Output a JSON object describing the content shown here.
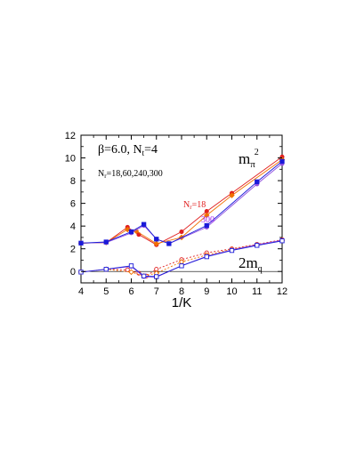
{
  "chart_data": {
    "type": "line",
    "title": "",
    "xlabel": "1/K",
    "ylabel": "",
    "xlim": [
      4,
      12
    ],
    "ylim": [
      -1,
      12
    ],
    "x_ticks": [
      "4",
      "5",
      "6",
      "7",
      "8",
      "9",
      "10",
      "11",
      "12"
    ],
    "y_ticks": [
      "0",
      "2",
      "4",
      "6",
      "8",
      "10",
      "12"
    ],
    "grid": false,
    "annotations": {
      "params": "β=6.0,  N",
      "params_sub": "t",
      "params_tail": "=4",
      "nr_prefix": "N",
      "nr_sub": "r",
      "nr_tail": "=18,60,240,300",
      "mpi_main": "m",
      "mpi_sub": "π",
      "mpi_sup": "2",
      "label_18_main": "N",
      "label_18_sub": "r",
      "label_18_tail": "=18",
      "label_300": "300",
      "mq_main": "2m",
      "mq_sub": "q"
    },
    "colors": {
      "nr18": "#e02020",
      "nr60": "#f07000",
      "nr240": "#9050e0",
      "nr300": "#1a1ad8",
      "label300": "#a020f0"
    },
    "series": [
      {
        "group": "mpi2",
        "color": "#e02020",
        "marker": "filled-circle",
        "dash": false,
        "x": [
          4,
          5,
          5.85,
          6.3,
          7,
          8,
          9,
          10,
          12
        ],
        "y": [
          2.5,
          2.55,
          3.9,
          3.25,
          2.35,
          3.5,
          5.3,
          6.9,
          10.1
        ]
      },
      {
        "group": "mpi2",
        "color": "#f07000",
        "marker": "filled-diamond",
        "dash": false,
        "x": [
          4,
          5,
          5.85,
          6.2,
          7,
          8,
          9,
          10,
          12
        ],
        "y": [
          2.5,
          2.55,
          3.7,
          3.55,
          2.45,
          3.0,
          4.95,
          6.7,
          9.85
        ]
      },
      {
        "group": "mpi2",
        "color": "#9050e0",
        "marker": "filled-circle",
        "dash": false,
        "x": [
          4,
          5,
          6,
          6.5,
          7,
          7.5,
          9,
          11,
          12
        ],
        "y": [
          2.5,
          2.55,
          3.4,
          4.05,
          2.85,
          2.45,
          3.9,
          7.7,
          9.5
        ]
      },
      {
        "group": "mpi2",
        "color": "#1a1ad8",
        "marker": "filled-square",
        "dash": false,
        "x": [
          4,
          5,
          6,
          6.5,
          7,
          7.5,
          9,
          11,
          12
        ],
        "y": [
          2.5,
          2.6,
          3.5,
          4.15,
          2.85,
          2.45,
          4.05,
          7.9,
          9.7
        ]
      },
      {
        "group": "mq",
        "color": "#e02020",
        "marker": "open-circle",
        "dash": true,
        "x": [
          4,
          5,
          5.85,
          6.3,
          6.6,
          7,
          8,
          9,
          10,
          11,
          12
        ],
        "y": [
          -0.05,
          0.2,
          0.15,
          -0.15,
          -0.4,
          0.2,
          1.05,
          1.65,
          2.0,
          2.4,
          2.8
        ]
      },
      {
        "group": "mq",
        "color": "#f07000",
        "marker": "open-diamond",
        "dash": true,
        "x": [
          4,
          5,
          6,
          6.5,
          7,
          8,
          9,
          10,
          11,
          12
        ],
        "y": [
          -0.05,
          0.2,
          -0.05,
          -0.4,
          -0.15,
          0.85,
          1.45,
          1.95,
          2.35,
          2.75
        ]
      },
      {
        "group": "mq",
        "color": "#9050e0",
        "marker": "open-circle",
        "dash": false,
        "x": [
          4,
          5,
          6,
          6.5,
          7,
          8,
          9,
          10,
          11,
          12
        ],
        "y": [
          -0.05,
          0.2,
          0.45,
          -0.45,
          -0.5,
          0.5,
          1.35,
          1.9,
          2.35,
          2.75
        ]
      },
      {
        "group": "mq",
        "color": "#1a1ad8",
        "marker": "open-square",
        "dash": false,
        "x": [
          4,
          5,
          6,
          6.5,
          7,
          8,
          9,
          10,
          11,
          12
        ],
        "y": [
          -0.05,
          0.2,
          0.5,
          -0.4,
          -0.45,
          0.5,
          1.3,
          1.85,
          2.3,
          2.7
        ]
      }
    ]
  }
}
